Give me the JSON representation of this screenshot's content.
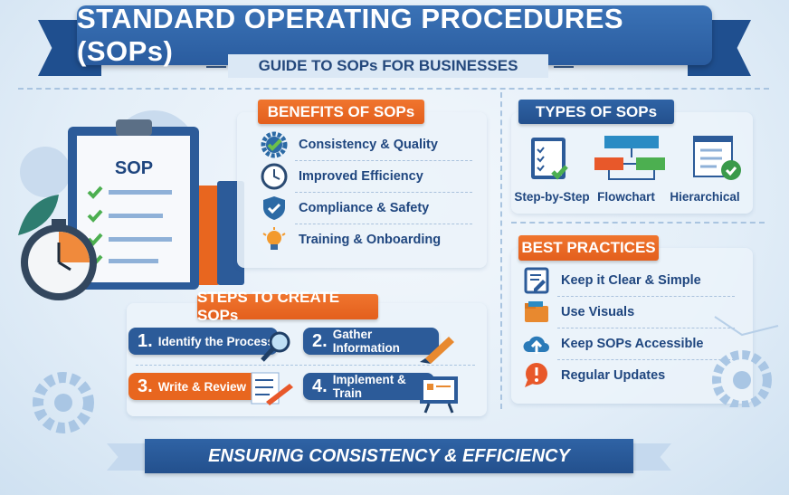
{
  "header": {
    "title": "STANDARD OPERATING PROCEDURES (SOPs)",
    "subtitle": "GUIDE TO SOPs FOR BUSINESSES"
  },
  "illustration": {
    "clipboard_label": "SOP"
  },
  "benefits": {
    "title": "BENEFITS OF SOPs",
    "items": [
      {
        "label": "Consistency & Quality",
        "icon": "gear-check-icon"
      },
      {
        "label": "Improved Efficiency",
        "icon": "clock-icon"
      },
      {
        "label": "Compliance & Safety",
        "icon": "shield-check-icon"
      },
      {
        "label": "Training & Onboarding",
        "icon": "lightbulb-icon"
      }
    ]
  },
  "types": {
    "title": "TYPES OF SOPs",
    "items": [
      {
        "label": "Step-by-Step",
        "icon": "checklist-icon"
      },
      {
        "label": "Flowchart",
        "icon": "flowchart-icon"
      },
      {
        "label": "Hierarchical",
        "icon": "document-check-icon"
      }
    ]
  },
  "steps": {
    "title": "STEPS TO CREATE SOPs",
    "items": [
      {
        "num": "1.",
        "label": "Identify the Process",
        "icon": "magnifier-icon"
      },
      {
        "num": "2.",
        "label": "Gather Information",
        "icon": "pen-icon"
      },
      {
        "num": "3.",
        "label": "Write & Review",
        "icon": "checklist-pencil-icon"
      },
      {
        "num": "4.",
        "label": "Implement & Train",
        "icon": "presentation-board-icon"
      }
    ]
  },
  "practices": {
    "title": "BEST PRACTICES",
    "items": [
      {
        "label": "Keep it Clear & Simple",
        "icon": "edit-document-icon"
      },
      {
        "label": "Use Visuals",
        "icon": "folder-icon"
      },
      {
        "label": "Keep SOPs Accessible",
        "icon": "cloud-upload-icon"
      },
      {
        "label": "Regular Updates",
        "icon": "alert-bubble-icon"
      }
    ]
  },
  "footer": {
    "text": "ENSURING CONSISTENCY & EFFICIENCY"
  },
  "colors": {
    "blue": "#2c5b99",
    "orange": "#e8661f",
    "green": "#4caf50",
    "text": "#1f467f"
  }
}
